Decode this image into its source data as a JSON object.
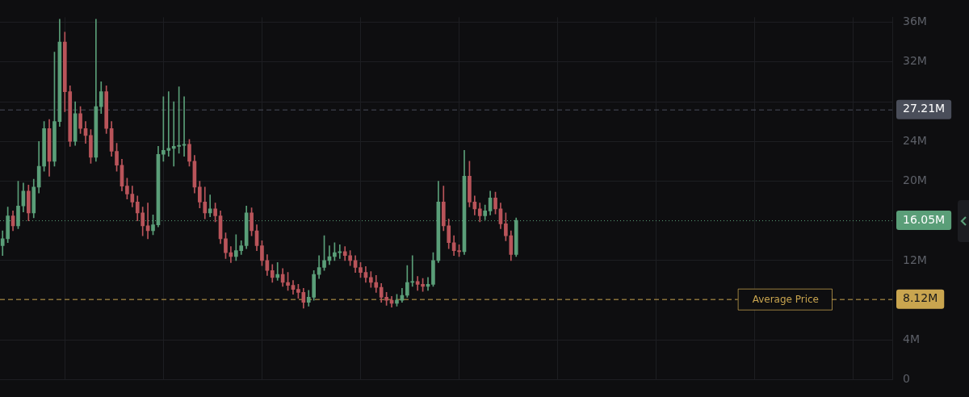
{
  "chart_data": {
    "type": "candlestick",
    "categories": [
      null,
      null,
      null,
      null,
      null,
      null,
      null,
      null,
      null,
      null,
      null,
      null,
      null,
      null,
      null,
      null,
      null,
      null,
      null,
      null,
      null,
      null,
      null,
      null,
      null,
      null,
      null,
      null,
      null,
      null,
      null,
      null,
      null,
      null,
      null,
      null,
      null,
      null,
      null,
      null,
      null,
      null,
      null,
      null,
      null,
      null,
      null,
      null,
      null,
      null,
      null,
      null,
      null,
      null,
      null,
      null,
      null,
      null,
      null,
      null,
      null,
      null,
      null,
      null,
      null,
      null,
      null,
      null,
      null,
      null,
      null,
      null,
      null,
      null,
      null,
      null,
      null,
      null,
      null,
      null,
      null,
      null,
      null,
      null,
      null,
      null,
      null,
      null,
      null,
      null,
      null,
      null,
      null,
      null,
      null,
      null,
      null,
      null,
      null,
      null,
      null,
      null,
      null,
      null,
      null,
      null,
      null,
      null,
      null,
      null,
      null,
      null,
      null,
      null,
      null,
      null,
      null,
      null,
      null,
      null,
      null,
      null,
      null,
      null,
      null,
      null,
      null,
      null,
      null,
      null,
      null,
      null,
      null,
      null,
      null,
      null,
      null,
      null,
      null,
      null,
      null,
      null,
      null,
      null,
      null,
      null,
      null,
      null,
      null,
      null,
      null,
      null,
      null,
      null,
      null,
      null,
      null,
      null,
      null,
      null,
      null,
      null,
      null,
      null,
      null,
      null,
      null,
      null,
      null,
      null,
      null,
      null
    ],
    "ohlc": [
      [
        13.5,
        15.0,
        12.5,
        14.2
      ],
      [
        14.2,
        17.4,
        13.8,
        16.5
      ],
      [
        16.5,
        17.0,
        15.0,
        15.5
      ],
      [
        15.5,
        20.0,
        15.2,
        17.5
      ],
      [
        17.5,
        19.8,
        16.9,
        19.0
      ],
      [
        19.0,
        19.6,
        16.0,
        16.8
      ],
      [
        16.8,
        20.2,
        16.3,
        19.4
      ],
      [
        19.4,
        24.0,
        18.8,
        21.5
      ],
      [
        21.5,
        26.0,
        21.0,
        25.3
      ],
      [
        25.3,
        26.2,
        20.5,
        22.0
      ],
      [
        22.0,
        33.0,
        21.5,
        26.0
      ],
      [
        26.0,
        36.3,
        25.5,
        34.0
      ],
      [
        34.0,
        35.0,
        27.0,
        29.0
      ],
      [
        29.0,
        29.6,
        23.5,
        24.0
      ],
      [
        24.0,
        28.0,
        23.6,
        26.8
      ],
      [
        26.8,
        27.5,
        24.8,
        25.3
      ],
      [
        25.3,
        26.0,
        23.8,
        24.6
      ],
      [
        24.6,
        25.2,
        21.8,
        22.4
      ],
      [
        22.4,
        36.3,
        22.0,
        27.5
      ],
      [
        27.5,
        30.0,
        26.8,
        29.0
      ],
      [
        29.0,
        29.6,
        24.8,
        25.3
      ],
      [
        25.3,
        26.0,
        22.5,
        23.0
      ],
      [
        23.0,
        23.8,
        21.0,
        21.6
      ],
      [
        21.6,
        22.2,
        19.0,
        19.5
      ],
      [
        19.5,
        20.3,
        18.2,
        18.7
      ],
      [
        18.7,
        19.5,
        17.4,
        17.9
      ],
      [
        17.9,
        18.5,
        16.0,
        16.8
      ],
      [
        16.8,
        17.4,
        14.5,
        15.5
      ],
      [
        15.5,
        17.8,
        14.2,
        15.0
      ],
      [
        15.0,
        16.6,
        14.6,
        15.6
      ],
      [
        15.6,
        23.5,
        15.4,
        22.7
      ],
      [
        22.7,
        28.5,
        22.0,
        23.1
      ],
      [
        23.1,
        29.0,
        22.5,
        23.3
      ],
      [
        23.3,
        28.0,
        21.5,
        23.5
      ],
      [
        23.5,
        29.5,
        22.8,
        23.6
      ],
      [
        23.6,
        28.5,
        22.5,
        23.7
      ],
      [
        23.7,
        24.2,
        21.5,
        22.0
      ],
      [
        22.0,
        22.6,
        18.8,
        19.4
      ],
      [
        19.4,
        20.0,
        17.3,
        17.9
      ],
      [
        17.9,
        19.4,
        16.2,
        16.8
      ],
      [
        16.8,
        18.6,
        16.4,
        17.2
      ],
      [
        17.2,
        17.8,
        15.9,
        16.5
      ],
      [
        16.5,
        17.0,
        13.7,
        14.2
      ],
      [
        14.2,
        14.8,
        12.2,
        12.8
      ],
      [
        12.8,
        13.4,
        11.8,
        12.4
      ],
      [
        12.4,
        14.6,
        12.0,
        13.0
      ],
      [
        13.0,
        14.0,
        12.6,
        13.5
      ],
      [
        13.5,
        17.5,
        13.2,
        16.8
      ],
      [
        16.8,
        17.3,
        14.5,
        15.0
      ],
      [
        15.0,
        15.6,
        13.0,
        13.5
      ],
      [
        13.5,
        14.0,
        11.5,
        12.0
      ],
      [
        12.0,
        12.6,
        10.5,
        11.0
      ],
      [
        11.0,
        11.6,
        9.8,
        10.3
      ],
      [
        10.3,
        11.8,
        10.0,
        10.6
      ],
      [
        10.6,
        11.2,
        9.4,
        9.8
      ],
      [
        9.8,
        10.8,
        9.0,
        9.5
      ],
      [
        9.5,
        10.0,
        8.6,
        9.1
      ],
      [
        9.1,
        9.6,
        8.2,
        8.8
      ],
      [
        8.8,
        9.2,
        7.2,
        7.8
      ],
      [
        7.8,
        9.0,
        7.4,
        8.3
      ],
      [
        8.3,
        11.0,
        8.0,
        10.6
      ],
      [
        10.6,
        12.5,
        10.2,
        11.3
      ],
      [
        11.3,
        14.5,
        11.0,
        12.0
      ],
      [
        12.0,
        13.5,
        11.6,
        12.4
      ],
      [
        12.4,
        13.8,
        12.0,
        12.8
      ],
      [
        12.8,
        13.6,
        12.2,
        12.9
      ],
      [
        12.9,
        13.4,
        12.0,
        12.5
      ],
      [
        12.5,
        13.0,
        11.5,
        12.0
      ],
      [
        12.0,
        12.5,
        10.8,
        11.3
      ],
      [
        11.3,
        11.8,
        10.3,
        10.8
      ],
      [
        10.8,
        11.4,
        9.8,
        10.3
      ],
      [
        10.3,
        10.9,
        9.3,
        9.8
      ],
      [
        9.8,
        10.5,
        8.8,
        9.3
      ],
      [
        9.3,
        9.7,
        7.8,
        8.3
      ],
      [
        8.3,
        8.8,
        7.5,
        8.0
      ],
      [
        8.0,
        8.4,
        7.3,
        7.7
      ],
      [
        7.7,
        8.6,
        7.4,
        8.0
      ],
      [
        8.0,
        9.2,
        7.8,
        8.5
      ],
      [
        8.5,
        11.5,
        8.3,
        9.8
      ],
      [
        9.8,
        12.5,
        9.4,
        9.9
      ],
      [
        9.9,
        10.4,
        9.0,
        9.6
      ],
      [
        9.6,
        10.2,
        8.9,
        9.4
      ],
      [
        9.4,
        10.3,
        9.0,
        9.6
      ],
      [
        9.6,
        12.8,
        9.4,
        12.0
      ],
      [
        12.0,
        20.0,
        11.8,
        17.9
      ],
      [
        17.9,
        19.5,
        15.0,
        15.5
      ],
      [
        15.5,
        16.2,
        13.2,
        13.8
      ],
      [
        13.8,
        14.5,
        12.5,
        13.0
      ],
      [
        13.0,
        13.6,
        12.4,
        12.9
      ],
      [
        12.9,
        23.1,
        12.6,
        20.5
      ],
      [
        20.5,
        22.0,
        17.4,
        17.9
      ],
      [
        17.9,
        18.5,
        16.6,
        17.2
      ],
      [
        17.2,
        17.8,
        15.9,
        16.5
      ],
      [
        16.5,
        17.6,
        16.1,
        17.0
      ],
      [
        17.0,
        19.0,
        16.6,
        18.3
      ],
      [
        18.3,
        18.9,
        16.7,
        17.2
      ],
      [
        17.2,
        17.8,
        15.2,
        15.7
      ],
      [
        15.7,
        16.8,
        14.0,
        14.5
      ],
      [
        14.5,
        15.0,
        12.0,
        12.6
      ],
      [
        12.6,
        16.3,
        12.4,
        16.05
      ],
      null,
      null,
      null,
      null,
      null,
      null,
      null,
      null,
      null,
      null,
      null,
      null,
      null,
      null,
      null,
      null,
      null,
      null,
      null,
      null,
      null,
      null,
      null,
      null,
      null,
      null,
      null,
      null,
      null,
      null,
      null,
      null,
      null,
      null,
      null,
      null,
      null,
      null,
      null,
      null,
      null,
      null,
      null,
      null,
      null,
      null,
      null,
      null,
      null,
      null,
      null,
      null,
      null,
      null,
      null,
      null,
      null,
      null,
      null,
      null,
      null,
      null,
      null,
      null,
      null,
      null,
      null,
      null,
      null,
      null,
      null,
      null
    ],
    "ylim": [
      0,
      36.5
    ],
    "yticks": [
      {
        "value": 0,
        "label": "0"
      },
      {
        "value": 4,
        "label": "4M"
      },
      {
        "value": 8.12,
        "label": "8.12M"
      },
      {
        "value": 12,
        "label": "12M"
      },
      {
        "value": 16.05,
        "label": "16.05M"
      },
      {
        "value": 20,
        "label": "20M"
      },
      {
        "value": 24,
        "label": "24M"
      },
      {
        "value": 27.21,
        "label": "27.21M"
      },
      {
        "value": 28,
        "label": null
      },
      {
        "value": 32,
        "label": "32M"
      },
      {
        "value": 36,
        "label": "36M"
      }
    ],
    "ref_lines": [
      {
        "axis": "y",
        "value": 27.21,
        "color": "#4a4e5a",
        "line_style": "dashed"
      },
      {
        "axis": "y",
        "value": 16.05,
        "color": "#5a9e78",
        "line_style": "dotted"
      },
      {
        "axis": "y",
        "value": 8.12,
        "label": "Average Price",
        "color": "#c9a54f",
        "line_style": "dashed"
      }
    ],
    "grid": true,
    "legend": false,
    "tick_labels": "y"
  }
}
